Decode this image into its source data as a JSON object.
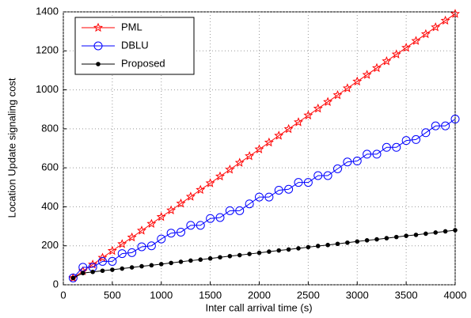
{
  "chart_data": {
    "type": "line",
    "xlabel": "Inter call arrival time (s)",
    "ylabel": "Location Update signaling cost",
    "x": [
      100,
      200,
      300,
      400,
      500,
      600,
      700,
      800,
      900,
      1000,
      1100,
      1200,
      1300,
      1400,
      1500,
      1600,
      1700,
      1800,
      1900,
      2000,
      2100,
      2200,
      2300,
      2400,
      2500,
      2600,
      2700,
      2800,
      2900,
      3000,
      3100,
      3200,
      3300,
      3400,
      3500,
      3600,
      3700,
      3800,
      3900,
      4000
    ],
    "series": [
      {
        "name": "PML",
        "color": "#ff0000",
        "marker": "star",
        "values": [
          35,
          70,
          104,
          139,
          174,
          209,
          243,
          278,
          313,
          348,
          382,
          417,
          452,
          487,
          521,
          556,
          591,
          626,
          660,
          695,
          730,
          765,
          799,
          834,
          869,
          904,
          938,
          973,
          1008,
          1043,
          1077,
          1112,
          1147,
          1182,
          1216,
          1251,
          1286,
          1321,
          1355,
          1390
        ]
      },
      {
        "name": "DBLU",
        "color": "#0000ff",
        "marker": "circle",
        "values": [
          35,
          90,
          90,
          120,
          120,
          160,
          165,
          195,
          200,
          235,
          265,
          270,
          305,
          305,
          340,
          345,
          380,
          380,
          415,
          450,
          450,
          485,
          490,
          525,
          525,
          560,
          560,
          595,
          630,
          635,
          670,
          670,
          705,
          705,
          740,
          745,
          780,
          815,
          815,
          850
        ]
      },
      {
        "name": "Proposed",
        "color": "#000000",
        "marker": "dot",
        "values": [
          35,
          60,
          66,
          72,
          77,
          83,
          89,
          95,
          100,
          106,
          112,
          118,
          124,
          129,
          135,
          141,
          147,
          152,
          158,
          164,
          170,
          176,
          181,
          187,
          193,
          199,
          204,
          210,
          216,
          222,
          228,
          233,
          239,
          245,
          251,
          256,
          262,
          268,
          274,
          280
        ]
      }
    ],
    "xlim": [
      0,
      4000
    ],
    "xticks": [
      0,
      500,
      1000,
      1500,
      2000,
      2500,
      3000,
      3500,
      4000
    ],
    "ylim": [
      0,
      1400
    ],
    "yticks": [
      0,
      200,
      400,
      600,
      800,
      1000,
      1200,
      1400
    ],
    "grid": true,
    "legend": "upper left"
  }
}
